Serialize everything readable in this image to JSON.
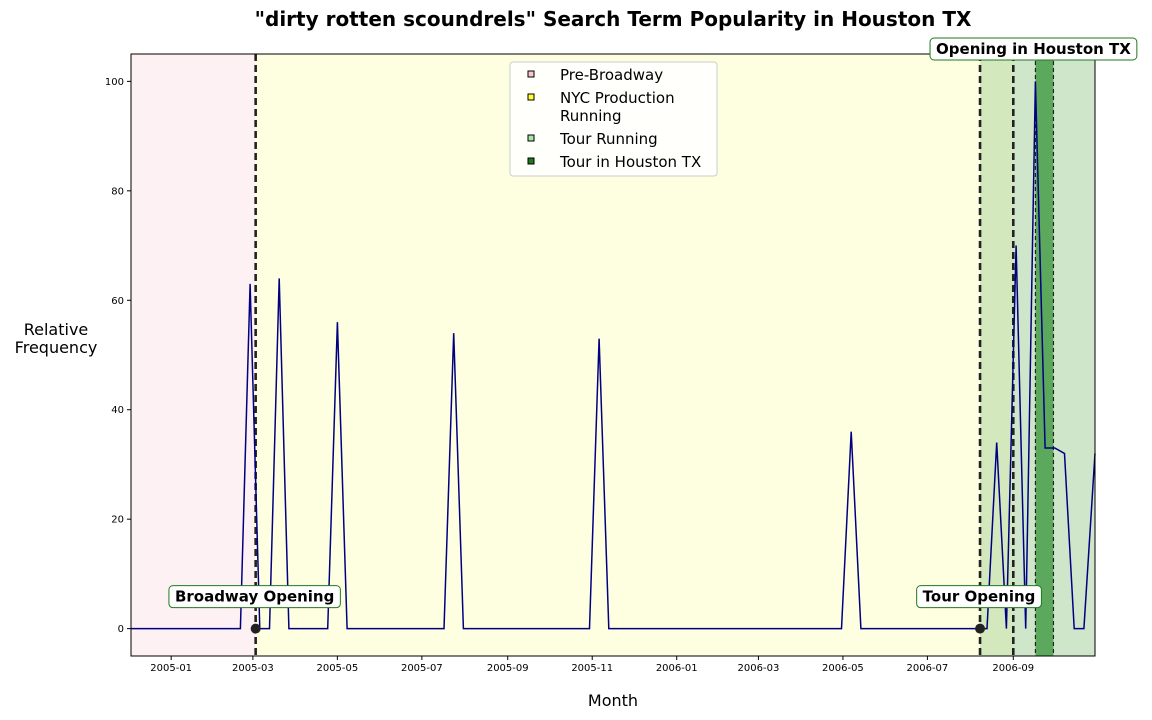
{
  "chart_data": {
    "type": "line",
    "title": "\"dirty rotten scoundrels\" Search Term Popularity in Houston TX",
    "xlabel": "Month",
    "ylabel": "Relative\nFrequency",
    "xlim": [
      "2004-12-03",
      "2006-10-30"
    ],
    "ylim": [
      -5,
      105
    ],
    "x_tick_labels": [
      "2005-01",
      "2005-03",
      "2005-05",
      "2005-07",
      "2005-09",
      "2005-11",
      "2006-01",
      "2006-03",
      "2006-05",
      "2006-07",
      "2006-09"
    ],
    "y_ticks": [
      0,
      20,
      40,
      60,
      80,
      100
    ],
    "grid": false,
    "legend_position": "top-center",
    "line_color": "#000080",
    "series": [
      {
        "points": [
          [
            "2004-12-03",
            0
          ],
          [
            "2005-02-20",
            0
          ],
          [
            "2005-02-27",
            63
          ],
          [
            "2005-03-06",
            0
          ],
          [
            "2005-03-13",
            0
          ],
          [
            "2005-03-20",
            64
          ],
          [
            "2005-03-27",
            0
          ],
          [
            "2005-04-24",
            0
          ],
          [
            "2005-05-01",
            56
          ],
          [
            "2005-05-08",
            0
          ],
          [
            "2005-07-17",
            0
          ],
          [
            "2005-07-24",
            54
          ],
          [
            "2005-07-31",
            0
          ],
          [
            "2005-10-30",
            0
          ],
          [
            "2005-11-06",
            53
          ],
          [
            "2005-11-13",
            0
          ],
          [
            "2006-04-30",
            0
          ],
          [
            "2006-05-07",
            36
          ],
          [
            "2006-05-14",
            0
          ],
          [
            "2006-08-13",
            0
          ],
          [
            "2006-08-20",
            34
          ],
          [
            "2006-08-27",
            0
          ],
          [
            "2006-09-03",
            70
          ],
          [
            "2006-09-10",
            0
          ],
          [
            "2006-09-17",
            100
          ],
          [
            "2006-09-24",
            33
          ],
          [
            "2006-10-01",
            33
          ],
          [
            "2006-10-08",
            32
          ],
          [
            "2006-10-15",
            0
          ],
          [
            "2006-10-22",
            0
          ],
          [
            "2006-10-30",
            32
          ]
        ]
      }
    ],
    "regions": [
      {
        "label": "Pre-Broadway",
        "start": "2004-12-03",
        "end": "2005-03-03",
        "color": "#fde8ec",
        "alpha": 0.6
      },
      {
        "label": "NYC Production\nRunning",
        "start": "2005-03-03",
        "end": "2006-08-08",
        "color": "#fefee0",
        "alpha": 1
      },
      {
        "label": "Tour Running",
        "start": "2006-08-08",
        "end": "2006-10-30",
        "color": "#cfe6cb",
        "alpha": 1
      },
      {
        "label": "Tour in Houston TX",
        "start": "2006-09-17",
        "end": "2006-09-30",
        "color": "#5ca85c",
        "alpha": 1
      }
    ],
    "region_overlap": {
      "start": "2006-08-08",
      "end": "2006-09-01",
      "color": "#d3e8bd"
    },
    "legend_items": [
      {
        "label": "Pre-Broadway",
        "swatch": "#f7c8d0"
      },
      {
        "label": "NYC Production\nRunning",
        "swatch": "#ffff33"
      },
      {
        "label": "Tour Running",
        "swatch": "#a6e6a6"
      },
      {
        "label": "Tour in Houston TX",
        "swatch": "#1e7a1e"
      }
    ],
    "event_lines": [
      "2005-03-03",
      "2006-08-08",
      "2006-09-01",
      "2006-09-17",
      "2006-09-30"
    ],
    "annotations": [
      {
        "text": "Broadway Opening",
        "x": "2005-03-03",
        "y": 0,
        "marker": true,
        "label_side": "below-left"
      },
      {
        "text": "Tour Opening",
        "x": "2006-08-08",
        "y": 0,
        "marker": true,
        "label_side": "below-left"
      },
      {
        "text": "Opening in Houston TX",
        "x": "2006-09-17",
        "y": 105,
        "marker": false,
        "label_side": "top"
      }
    ]
  }
}
